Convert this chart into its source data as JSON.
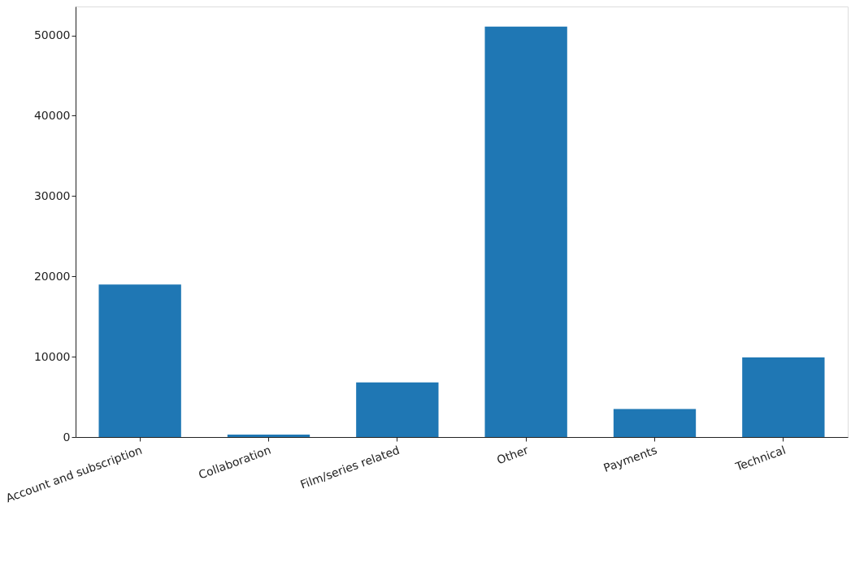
{
  "chart_data": {
    "type": "bar",
    "categories": [
      "Account and subscription",
      "Collaboration",
      "Film/series related",
      "Other",
      "Payments",
      "Technical"
    ],
    "values": [
      19000,
      300,
      6800,
      51100,
      3500,
      9900
    ],
    "color": "#1f77b4",
    "ylim": [
      0,
      53600
    ],
    "yticks": [
      0,
      10000,
      20000,
      30000,
      40000,
      50000
    ],
    "grid": false
  }
}
